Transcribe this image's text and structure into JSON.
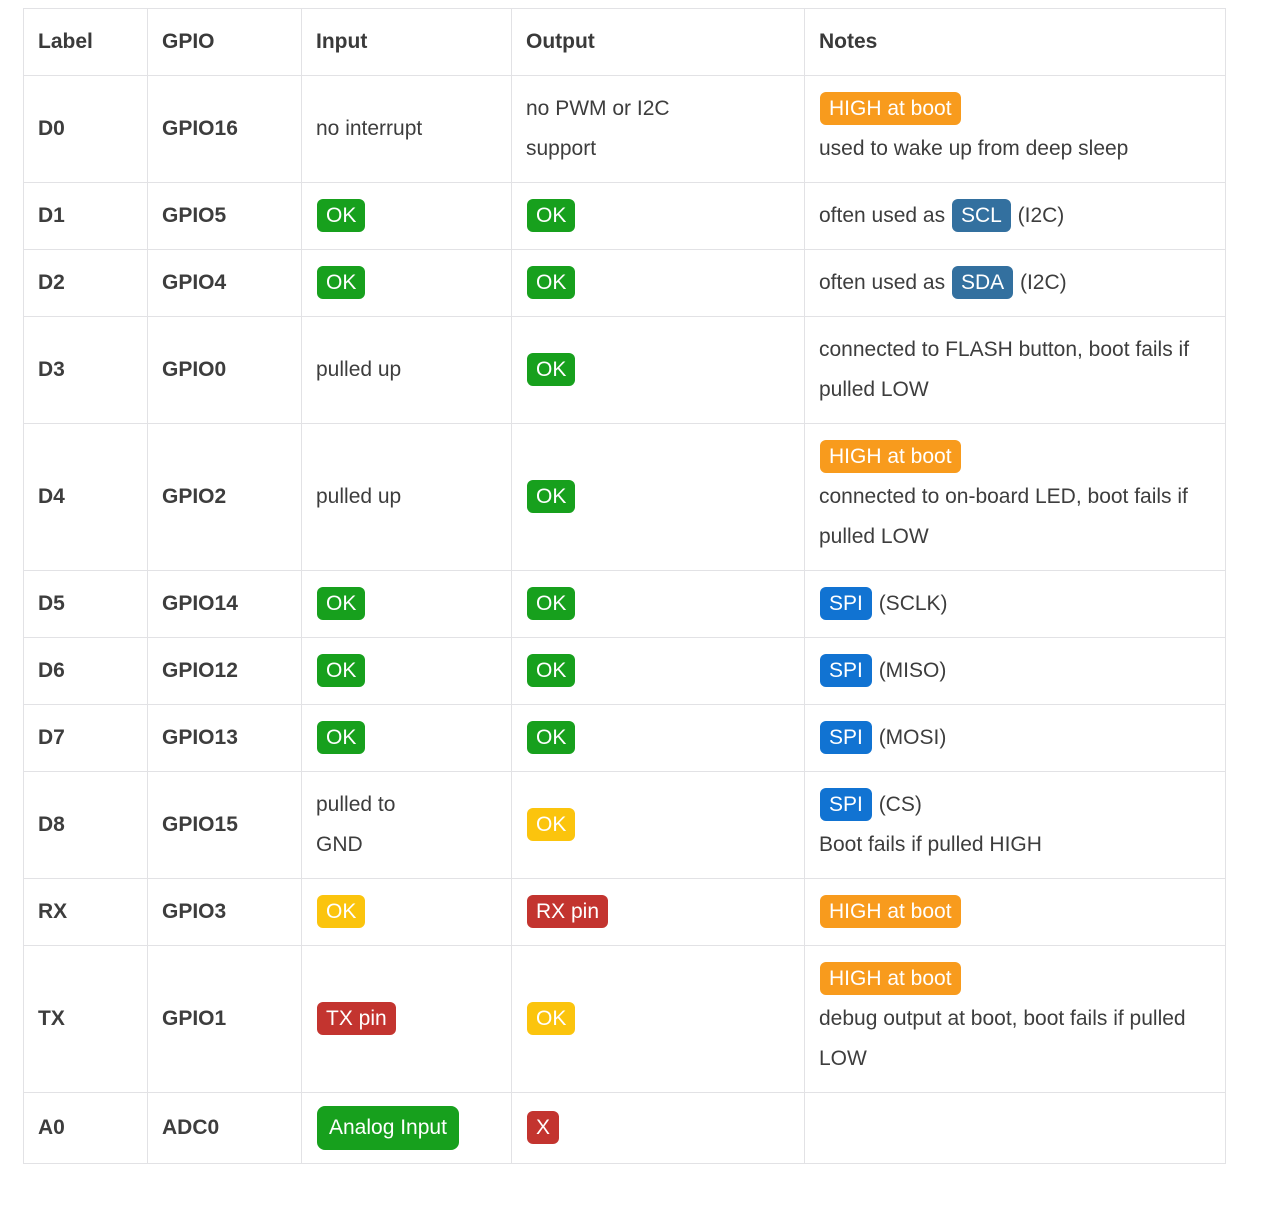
{
  "table": {
    "headers": [
      "Label",
      "GPIO",
      "Input",
      "Output",
      "Notes"
    ],
    "badge_colors": {
      "green": "#17a01d",
      "yellow": "#fbc40d",
      "red": "#c3342f",
      "orange": "#f89b1d",
      "steel_blue": "#33709f",
      "bright_blue": "#1173d2"
    },
    "rows": [
      {
        "label": "D0",
        "gpio": "GPIO16",
        "input": [
          {
            "t": "text",
            "v": "no interrupt"
          }
        ],
        "output": [
          {
            "t": "text",
            "v": "no PWM or I2C"
          },
          {
            "t": "break"
          },
          {
            "t": "text",
            "v": "support"
          }
        ],
        "notes": [
          {
            "t": "badge",
            "v": "HIGH at boot",
            "c": "orange"
          },
          {
            "t": "break"
          },
          {
            "t": "text",
            "v": "used to wake up from deep sleep"
          }
        ]
      },
      {
        "label": "D1",
        "gpio": "GPIO5",
        "input": [
          {
            "t": "badge",
            "v": "OK",
            "c": "green"
          }
        ],
        "output": [
          {
            "t": "badge",
            "v": "OK",
            "c": "green"
          }
        ],
        "notes": [
          {
            "t": "text",
            "v": "often used as "
          },
          {
            "t": "badge",
            "v": "SCL",
            "c": "steel_blue"
          },
          {
            "t": "text",
            "v": " (I2C)"
          }
        ]
      },
      {
        "label": "D2",
        "gpio": "GPIO4",
        "input": [
          {
            "t": "badge",
            "v": "OK",
            "c": "green"
          }
        ],
        "output": [
          {
            "t": "badge",
            "v": "OK",
            "c": "green"
          }
        ],
        "notes": [
          {
            "t": "text",
            "v": "often used as "
          },
          {
            "t": "badge",
            "v": "SDA",
            "c": "steel_blue"
          },
          {
            "t": "text",
            "v": " (I2C)"
          }
        ]
      },
      {
        "label": "D3",
        "gpio": "GPIO0",
        "input": [
          {
            "t": "text",
            "v": "pulled up"
          }
        ],
        "output": [
          {
            "t": "badge",
            "v": "OK",
            "c": "green"
          }
        ],
        "notes": [
          {
            "t": "text",
            "v": "connected to FLASH button, boot fails if pulled LOW"
          }
        ]
      },
      {
        "label": "D4",
        "gpio": "GPIO2",
        "input": [
          {
            "t": "text",
            "v": "pulled up"
          }
        ],
        "output": [
          {
            "t": "badge",
            "v": "OK",
            "c": "green"
          }
        ],
        "notes": [
          {
            "t": "badge",
            "v": "HIGH at boot",
            "c": "orange"
          },
          {
            "t": "break"
          },
          {
            "t": "text",
            "v": "connected to on-board LED, boot fails if pulled LOW"
          }
        ]
      },
      {
        "label": "D5",
        "gpio": "GPIO14",
        "input": [
          {
            "t": "badge",
            "v": "OK",
            "c": "green"
          }
        ],
        "output": [
          {
            "t": "badge",
            "v": "OK",
            "c": "green"
          }
        ],
        "notes": [
          {
            "t": "badge",
            "v": "SPI",
            "c": "bright_blue"
          },
          {
            "t": "text",
            "v": " (SCLK)"
          }
        ]
      },
      {
        "label": "D6",
        "gpio": "GPIO12",
        "input": [
          {
            "t": "badge",
            "v": "OK",
            "c": "green"
          }
        ],
        "output": [
          {
            "t": "badge",
            "v": "OK",
            "c": "green"
          }
        ],
        "notes": [
          {
            "t": "badge",
            "v": "SPI",
            "c": "bright_blue"
          },
          {
            "t": "text",
            "v": " (MISO)"
          }
        ]
      },
      {
        "label": "D7",
        "gpio": "GPIO13",
        "input": [
          {
            "t": "badge",
            "v": "OK",
            "c": "green"
          }
        ],
        "output": [
          {
            "t": "badge",
            "v": "OK",
            "c": "green"
          }
        ],
        "notes": [
          {
            "t": "badge",
            "v": "SPI",
            "c": "bright_blue"
          },
          {
            "t": "text",
            "v": " (MOSI)"
          }
        ]
      },
      {
        "label": "D8",
        "gpio": "GPIO15",
        "input": [
          {
            "t": "text",
            "v": "pulled to"
          },
          {
            "t": "break"
          },
          {
            "t": "text",
            "v": "GND"
          }
        ],
        "output": [
          {
            "t": "badge",
            "v": "OK",
            "c": "yellow"
          }
        ],
        "notes": [
          {
            "t": "badge",
            "v": "SPI",
            "c": "bright_blue"
          },
          {
            "t": "text",
            "v": " (CS)"
          },
          {
            "t": "break"
          },
          {
            "t": "text",
            "v": "Boot fails if pulled HIGH"
          }
        ]
      },
      {
        "label": "RX",
        "gpio": "GPIO3",
        "input": [
          {
            "t": "badge",
            "v": "OK",
            "c": "yellow"
          }
        ],
        "output": [
          {
            "t": "badge",
            "v": "RX pin",
            "c": "red"
          }
        ],
        "notes": [
          {
            "t": "badge",
            "v": "HIGH at boot",
            "c": "orange"
          }
        ]
      },
      {
        "label": "TX",
        "gpio": "GPIO1",
        "input": [
          {
            "t": "badge",
            "v": "TX pin",
            "c": "red"
          }
        ],
        "output": [
          {
            "t": "badge",
            "v": "OK",
            "c": "yellow"
          }
        ],
        "notes": [
          {
            "t": "badge",
            "v": "HIGH at boot",
            "c": "orange"
          },
          {
            "t": "break"
          },
          {
            "t": "text",
            "v": "debug output at boot, boot fails if pulled LOW"
          }
        ]
      },
      {
        "label": "A0",
        "gpio": "ADC0",
        "input": [
          {
            "t": "badge",
            "v": "Analog Input",
            "c": "green",
            "big": true
          }
        ],
        "output": [
          {
            "t": "badge",
            "v": "X",
            "c": "red"
          }
        ],
        "notes": []
      }
    ]
  }
}
